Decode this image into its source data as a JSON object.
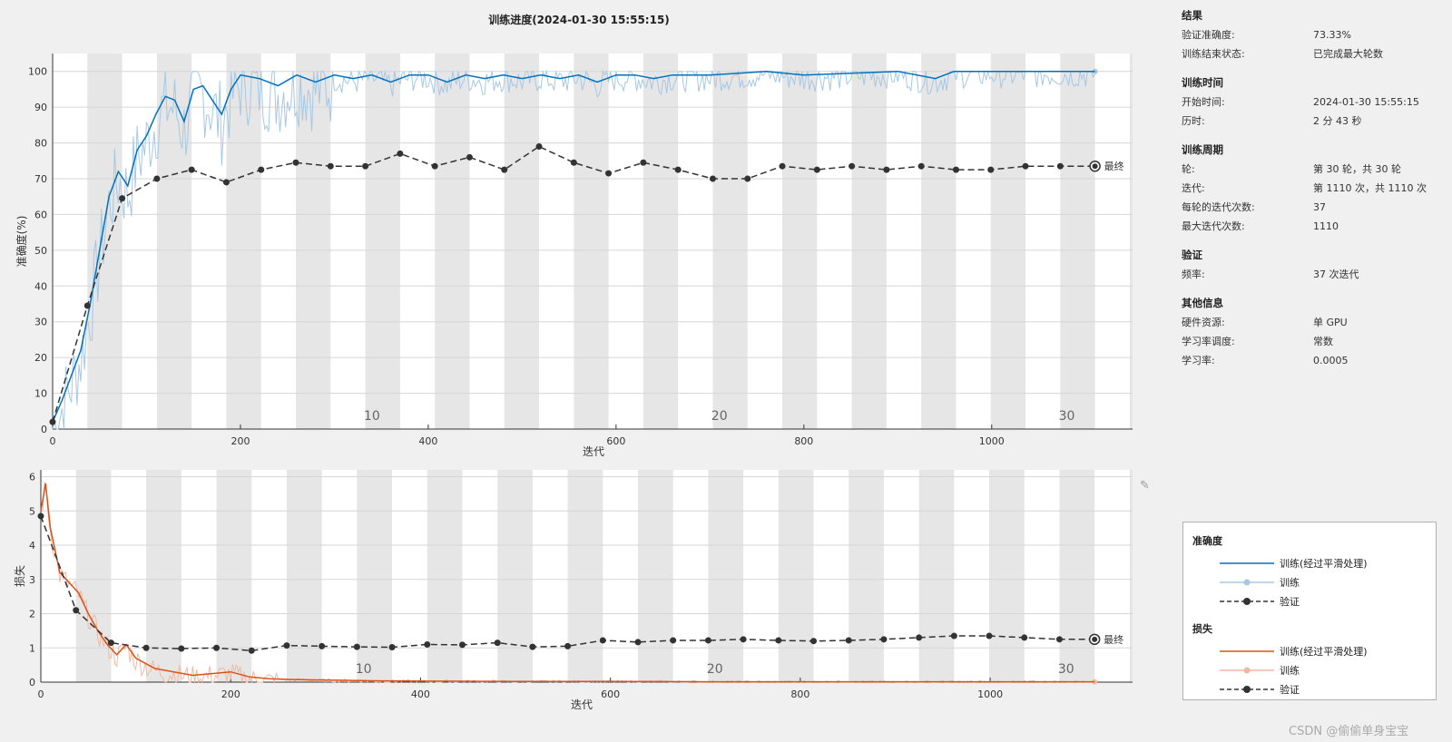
{
  "chart_data": [
    {
      "type": "line",
      "title": "训练进度(2024-01-30 15:55:15)",
      "xlabel": "迭代",
      "ylabel": "准确度(%)",
      "xlim": [
        0,
        1150
      ],
      "ylim": [
        0,
        105
      ],
      "xticks": [
        0,
        200,
        400,
        600,
        800,
        1000
      ],
      "yticks": [
        0,
        10,
        20,
        30,
        40,
        50,
        60,
        70,
        80,
        90,
        100
      ],
      "grid": true,
      "iterations_per_epoch": 37,
      "epoch_labels": [
        {
          "epoch": "10",
          "x": 340
        },
        {
          "epoch": "20",
          "x": 710
        },
        {
          "epoch": "30",
          "x": 1080
        }
      ],
      "final_label": "最终",
      "series": [
        {
          "name": "训练(经过平滑处理)",
          "color": "#0072bd",
          "x": [
            0,
            10,
            20,
            30,
            40,
            50,
            60,
            70,
            80,
            90,
            100,
            110,
            120,
            130,
            140,
            150,
            160,
            170,
            180,
            190,
            200,
            220,
            240,
            260,
            280,
            300,
            320,
            340,
            360,
            380,
            400,
            420,
            440,
            460,
            480,
            500,
            520,
            540,
            560,
            580,
            600,
            620,
            640,
            660,
            700,
            760,
            800,
            900,
            940,
            960,
            1000,
            1110
          ],
          "values": [
            2,
            8,
            15,
            22,
            35,
            50,
            65,
            72,
            68,
            78,
            82,
            88,
            93,
            92,
            86,
            95,
            96,
            92,
            88,
            95,
            99,
            98,
            96,
            99,
            97,
            99,
            98,
            99,
            97,
            99,
            99,
            97,
            99,
            98,
            99,
            98,
            99,
            98,
            99,
            97,
            99,
            99,
            98,
            99,
            99,
            100,
            99,
            100,
            98,
            100,
            100,
            100
          ]
        },
        {
          "name": "验证",
          "color": "#333333",
          "x": [
            0,
            37,
            74,
            111,
            148,
            185,
            222,
            259,
            296,
            333,
            370,
            407,
            444,
            481,
            518,
            555,
            592,
            629,
            666,
            703,
            740,
            777,
            814,
            851,
            888,
            925,
            962,
            999,
            1036,
            1073,
            1110
          ],
          "values": [
            2,
            34.5,
            64.5,
            70,
            72.5,
            69,
            72.5,
            74.5,
            73.5,
            73.5,
            77,
            73.5,
            76,
            72.5,
            79,
            74.5,
            71.5,
            74.5,
            72.5,
            70,
            70,
            73.5,
            72.5,
            73.5,
            72.5,
            73.5,
            72.5,
            72.5,
            73.5,
            73.5,
            73.5
          ]
        }
      ]
    },
    {
      "type": "line",
      "title": "",
      "xlabel": "迭代",
      "ylabel": "损失",
      "xlim": [
        0,
        1150
      ],
      "ylim": [
        0,
        6.2
      ],
      "xticks": [
        0,
        200,
        400,
        600,
        800,
        1000
      ],
      "yticks": [
        0,
        1,
        2,
        3,
        4,
        5,
        6
      ],
      "grid": true,
      "iterations_per_epoch": 37,
      "epoch_labels": [
        {
          "epoch": "10",
          "x": 340
        },
        {
          "epoch": "20",
          "x": 710
        },
        {
          "epoch": "30",
          "x": 1080
        }
      ],
      "final_label": "最终",
      "series": [
        {
          "name": "训练(经过平滑处理)",
          "color": "#d95319",
          "x": [
            0,
            5,
            10,
            20,
            30,
            40,
            50,
            60,
            70,
            80,
            90,
            100,
            110,
            120,
            140,
            160,
            180,
            200,
            220,
            240,
            260,
            300,
            350,
            400,
            500,
            600,
            700,
            800,
            900,
            1000,
            1110
          ],
          "values": [
            5.0,
            5.8,
            4.5,
            3.2,
            2.9,
            2.6,
            2.0,
            1.5,
            1.1,
            0.8,
            1.1,
            0.7,
            0.55,
            0.4,
            0.3,
            0.2,
            0.25,
            0.3,
            0.15,
            0.1,
            0.08,
            0.06,
            0.04,
            0.03,
            0.02,
            0.02,
            0.01,
            0.01,
            0.01,
            0.01,
            0.01
          ]
        },
        {
          "name": "验证",
          "color": "#333333",
          "x": [
            0,
            37,
            74,
            111,
            148,
            185,
            222,
            259,
            296,
            333,
            370,
            407,
            444,
            481,
            518,
            555,
            592,
            629,
            666,
            703,
            740,
            777,
            814,
            851,
            888,
            925,
            962,
            999,
            1036,
            1073,
            1110
          ],
          "values": [
            4.85,
            2.1,
            1.15,
            1.0,
            0.98,
            1.0,
            0.92,
            1.07,
            1.05,
            1.03,
            1.02,
            1.1,
            1.09,
            1.15,
            1.03,
            1.05,
            1.22,
            1.17,
            1.22,
            1.22,
            1.25,
            1.22,
            1.2,
            1.22,
            1.25,
            1.3,
            1.35,
            1.35,
            1.3,
            1.25,
            1.25
          ]
        }
      ]
    }
  ],
  "info": {
    "sections": [
      {
        "heading": "结果",
        "rows": [
          [
            "验证准确度:",
            "73.33%"
          ],
          [
            "训练结束状态:",
            "已完成最大轮数"
          ]
        ]
      },
      {
        "heading": "训练时间",
        "rows": [
          [
            "开始时间:",
            "2024-01-30 15:55:15"
          ],
          [
            "历时:",
            "2 分 43 秒"
          ]
        ]
      },
      {
        "heading": "训练周期",
        "rows": [
          [
            "轮:",
            "第 30 轮，共 30 轮"
          ],
          [
            "迭代:",
            "第 1110 次，共 1110 次"
          ],
          [
            "每轮的迭代次数:",
            "37"
          ],
          [
            "最大迭代次数:",
            "1110"
          ]
        ]
      },
      {
        "heading": "验证",
        "rows": [
          [
            "频率:",
            "37 次迭代"
          ]
        ]
      },
      {
        "heading": "其他信息",
        "rows": [
          [
            "硬件资源:",
            "单 GPU"
          ],
          [
            "学习率调度:",
            "常数"
          ],
          [
            "学习率:",
            "0.0005"
          ]
        ]
      }
    ]
  },
  "legend": {
    "accuracy_heading": "准确度",
    "loss_heading": "损失",
    "smoothed": "训练(经过平滑处理)",
    "train": "训练",
    "validation": "验证"
  },
  "watermark": "CSDN @偷偷单身宝宝"
}
